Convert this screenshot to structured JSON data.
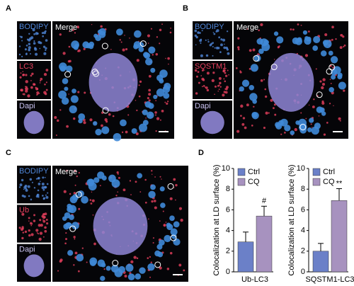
{
  "panels": [
    {
      "label": "A",
      "channels": [
        "BODIPY",
        "LC3",
        "Dapi"
      ],
      "merge": "Merge"
    },
    {
      "label": "B",
      "channels": [
        "BODIPY",
        "SQSTM1",
        "Dapi"
      ],
      "merge": "Merge"
    },
    {
      "label": "C",
      "channels": [
        "BODIPY",
        "Ub",
        "Dapi"
      ],
      "merge": "Merge"
    }
  ],
  "panel_d_label": "D",
  "chart_data": [
    {
      "type": "bar",
      "ylabel": "Colocalization at LD surface (%)",
      "categories": [
        "Ub-LC3"
      ],
      "series": [
        {
          "name": "Ctrl",
          "color": "#6b80c8",
          "values": [
            2.9
          ],
          "errors": [
            0.95
          ]
        },
        {
          "name": "CQ",
          "color": "#a792bf",
          "values": [
            5.4
          ],
          "errors": [
            0.95
          ],
          "annotation": "#"
        }
      ],
      "ylim": [
        0,
        10
      ],
      "yticks": [
        0,
        2,
        4,
        6,
        8,
        10
      ],
      "legend": "upper-left"
    },
    {
      "type": "bar",
      "ylabel": "Colocalization at LD surface (%)",
      "categories": [
        "SQSTM1-LC3"
      ],
      "series": [
        {
          "name": "Ctrl",
          "color": "#6b80c8",
          "values": [
            2.0
          ],
          "errors": [
            0.75
          ]
        },
        {
          "name": "CQ",
          "color": "#a792bf",
          "values": [
            6.9
          ],
          "errors": [
            1.15
          ],
          "annotation": "**"
        }
      ],
      "ylim": [
        0,
        10
      ],
      "yticks": [
        0,
        2,
        4,
        6,
        8,
        10
      ],
      "legend": "upper-left"
    }
  ]
}
